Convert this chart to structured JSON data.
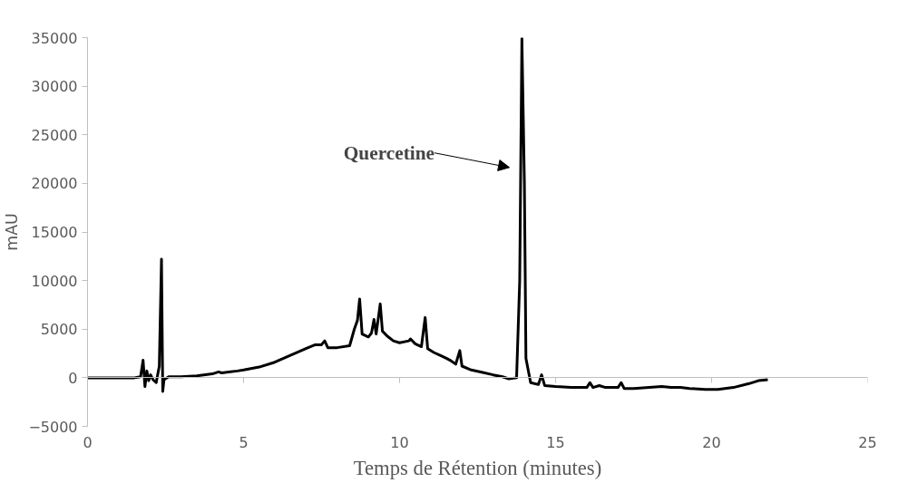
{
  "chart_data": {
    "type": "line",
    "xlabel": "Temps de Rétention (minutes)",
    "ylabel": "mAU",
    "xlim": [
      0,
      25
    ],
    "xticks": [
      0,
      5,
      10,
      15,
      20,
      25
    ],
    "ylim": [
      -5000,
      35000
    ],
    "yticks": [
      -5000,
      0,
      5000,
      10000,
      15000,
      20000,
      25000,
      30000,
      35000
    ],
    "marker": "none",
    "line_style": "solid",
    "annotations": [
      "Quercetine"
    ],
    "series": [
      {
        "color": "#000000",
        "x": [
          0,
          1.5,
          1.7,
          1.78,
          1.84,
          1.9,
          1.96,
          2.02,
          2.1,
          2.2,
          2.3,
          2.37,
          2.41,
          2.45,
          2.6,
          3.0,
          3.5,
          4.0,
          4.2,
          4.3,
          4.8,
          5.0,
          5.5,
          6.0,
          6.5,
          7.0,
          7.3,
          7.5,
          7.6,
          7.7,
          8.0,
          8.4,
          8.55,
          8.65,
          8.72,
          8.8,
          9.0,
          9.1,
          9.18,
          9.25,
          9.38,
          9.45,
          9.6,
          9.8,
          10.0,
          10.3,
          10.35,
          10.5,
          10.7,
          10.82,
          10.9,
          11.1,
          11.3,
          11.5,
          11.62,
          11.8,
          11.93,
          12.0,
          12.3,
          12.6,
          13.0,
          13.3,
          13.5,
          13.75,
          13.85,
          13.92,
          14.0,
          14.05,
          14.2,
          14.45,
          14.55,
          14.65,
          15.0,
          15.5,
          16.0,
          16.1,
          16.2,
          16.4,
          16.6,
          17.0,
          17.1,
          17.2,
          17.5,
          18.0,
          18.4,
          18.7,
          19.0,
          19.3,
          19.8,
          20.2,
          20.7,
          21.2,
          21.5,
          21.8
        ],
        "values": [
          0,
          0,
          100,
          1800,
          -900,
          700,
          -300,
          300,
          -200,
          -500,
          1200,
          12200,
          -1400,
          -200,
          100,
          100,
          200,
          400,
          600,
          500,
          700,
          800,
          1100,
          1600,
          2300,
          3000,
          3400,
          3400,
          3800,
          3100,
          3100,
          3300,
          5000,
          5900,
          8100,
          4500,
          4200,
          4600,
          6000,
          4500,
          7600,
          4800,
          4300,
          3800,
          3600,
          3800,
          4000,
          3500,
          3200,
          6200,
          3000,
          2600,
          2300,
          2000,
          1800,
          1400,
          2800,
          1200,
          800,
          600,
          300,
          100,
          -100,
          0,
          10000,
          34900,
          20000,
          2000,
          -500,
          -700,
          300,
          -800,
          -900,
          -1000,
          -1000,
          -500,
          -1000,
          -800,
          -1000,
          -1000,
          -500,
          -1100,
          -1100,
          -1000,
          -900,
          -1000,
          -1000,
          -1100,
          -1200,
          -1200,
          -1000,
          -600,
          -300,
          -200
        ]
      }
    ]
  }
}
